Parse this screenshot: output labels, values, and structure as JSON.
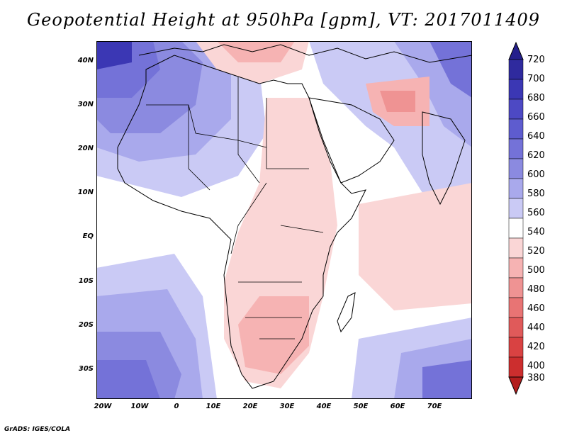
{
  "title": "Geopotential Height at 950hPa [gpm], VT: 2017011409",
  "credit": "GrADS: IGES/COLA",
  "lat_labels": [
    "40N",
    "30N",
    "20N",
    "10N",
    "EQ",
    "10S",
    "20S",
    "30S"
  ],
  "lon_labels": [
    "20W",
    "10W",
    "0",
    "10E",
    "20E",
    "30E",
    "40E",
    "50E",
    "60E",
    "70E"
  ],
  "colorbar": {
    "levels": [
      "720",
      "700",
      "680",
      "660",
      "640",
      "620",
      "600",
      "580",
      "560",
      "540",
      "520",
      "500",
      "480",
      "460",
      "440",
      "420",
      "400",
      "380"
    ],
    "colors": [
      "#251f8c",
      "#2f2a9e",
      "#3b37b4",
      "#4d49c4",
      "#5e5ccf",
      "#7472d8",
      "#8b8ae0",
      "#a9a9ec",
      "#cacaf5",
      "#ffffff",
      "#fad6d6",
      "#f6b3b3",
      "#ef9393",
      "#e87474",
      "#e05a5a",
      "#d94242",
      "#cc2e2e",
      "#b31e1e"
    ]
  }
}
